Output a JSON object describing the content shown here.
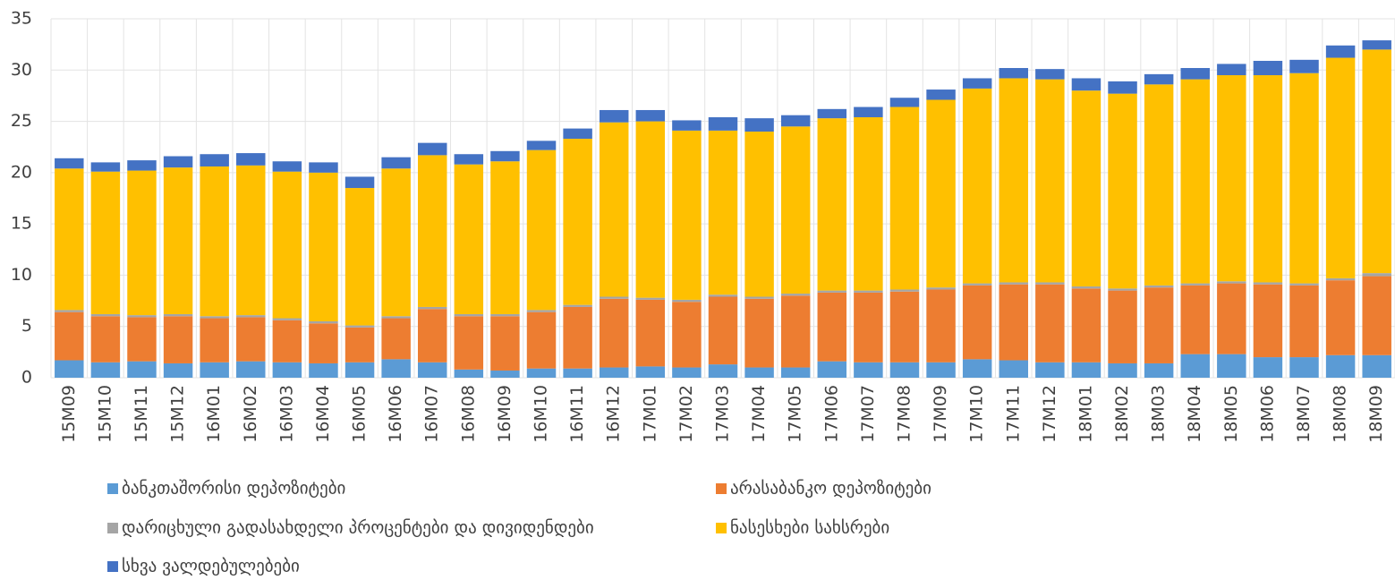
{
  "chart_data": {
    "type": "stacked-bar",
    "categories": [
      "15M09",
      "15M10",
      "15M11",
      "15M12",
      "16M01",
      "16M02",
      "16M03",
      "16M04",
      "16M05",
      "16M06",
      "16M07",
      "16M08",
      "16M09",
      "16M10",
      "16M11",
      "16M12",
      "17M01",
      "17M02",
      "17M03",
      "17M04",
      "17M05",
      "17M06",
      "17M07",
      "17M08",
      "17M09",
      "17M10",
      "17M11",
      "17M12",
      "18M01",
      "18M02",
      "18M03",
      "18M04",
      "18M05",
      "18M06",
      "18M07",
      "18M08",
      "18M09"
    ],
    "series": [
      {
        "name": "ბანკთაშორისი დეპოზიტები",
        "color": "#5b9bd5",
        "values": [
          1.7,
          1.5,
          1.6,
          1.4,
          1.5,
          1.6,
          1.5,
          1.4,
          1.5,
          1.8,
          1.5,
          0.8,
          0.7,
          0.9,
          0.9,
          1.0,
          1.1,
          1.0,
          1.3,
          1.0,
          1.0,
          1.6,
          1.5,
          1.5,
          1.5,
          1.8,
          1.7,
          1.5,
          1.5,
          1.4,
          1.4,
          2.3,
          2.3,
          2.0,
          2.0,
          2.2,
          2.2
        ]
      },
      {
        "name": "არასაბანკო დეპოზიტები",
        "color": "#ed7d31",
        "values": [
          4.7,
          4.5,
          4.3,
          4.6,
          4.3,
          4.3,
          4.1,
          3.9,
          3.4,
          4.0,
          5.2,
          5.2,
          5.3,
          5.5,
          6.0,
          6.7,
          6.5,
          6.4,
          6.6,
          6.7,
          7.0,
          6.7,
          6.8,
          6.9,
          7.1,
          7.2,
          7.4,
          7.6,
          7.2,
          7.1,
          7.4,
          6.7,
          6.9,
          7.1,
          7.0,
          7.3,
          7.7
        ]
      },
      {
        "name": "დარიცხული გადასახდელი პროცენტები და დივიდენდები",
        "color": "#a5a5a5",
        "values": [
          0.2,
          0.2,
          0.2,
          0.2,
          0.2,
          0.2,
          0.2,
          0.2,
          0.2,
          0.2,
          0.2,
          0.2,
          0.2,
          0.2,
          0.2,
          0.2,
          0.2,
          0.2,
          0.2,
          0.2,
          0.2,
          0.2,
          0.2,
          0.2,
          0.2,
          0.2,
          0.2,
          0.2,
          0.2,
          0.2,
          0.2,
          0.2,
          0.2,
          0.2,
          0.2,
          0.2,
          0.3
        ]
      },
      {
        "name": "ნასესხები სახსრები",
        "color": "#ffc000",
        "values": [
          13.8,
          13.9,
          14.1,
          14.3,
          14.6,
          14.6,
          14.3,
          14.5,
          13.4,
          14.4,
          14.8,
          14.6,
          14.9,
          15.6,
          16.2,
          17.0,
          17.2,
          16.5,
          16.0,
          16.1,
          16.3,
          16.8,
          16.9,
          17.8,
          18.3,
          19.0,
          19.9,
          19.8,
          19.1,
          19.0,
          19.6,
          19.9,
          20.1,
          20.2,
          20.5,
          21.5,
          21.8
        ]
      },
      {
        "name": "სხვა ვალდებულებები",
        "color": "#4472c4",
        "values": [
          1.0,
          0.9,
          1.0,
          1.1,
          1.2,
          1.2,
          1.0,
          1.0,
          1.1,
          1.1,
          1.2,
          1.0,
          1.0,
          0.9,
          1.0,
          1.2,
          1.1,
          1.0,
          1.3,
          1.3,
          1.1,
          0.9,
          1.0,
          0.9,
          1.0,
          1.0,
          1.0,
          1.0,
          1.2,
          1.2,
          1.0,
          1.1,
          1.1,
          1.4,
          1.3,
          1.2,
          0.9
        ]
      }
    ],
    "ylim": [
      0,
      35
    ],
    "yticks": [
      0,
      5,
      10,
      15,
      20,
      25,
      30,
      35
    ],
    "grid": true,
    "legend": "bottom"
  }
}
